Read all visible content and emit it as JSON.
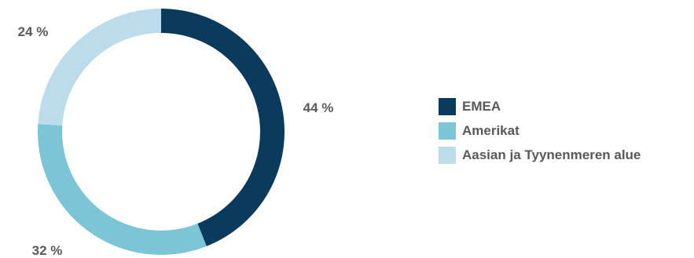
{
  "chart_data": {
    "type": "pie",
    "title": "",
    "categories": [
      "EMEA",
      "Amerikat",
      "Aasian ja Tyynenmeren alue"
    ],
    "values": [
      44,
      32,
      24
    ],
    "value_labels": [
      "44 %",
      "32 %",
      "24 %"
    ],
    "colors": [
      "#0b3b5c",
      "#7bc5d6",
      "#bcdcec"
    ],
    "legend_position": "right",
    "donut": true
  }
}
